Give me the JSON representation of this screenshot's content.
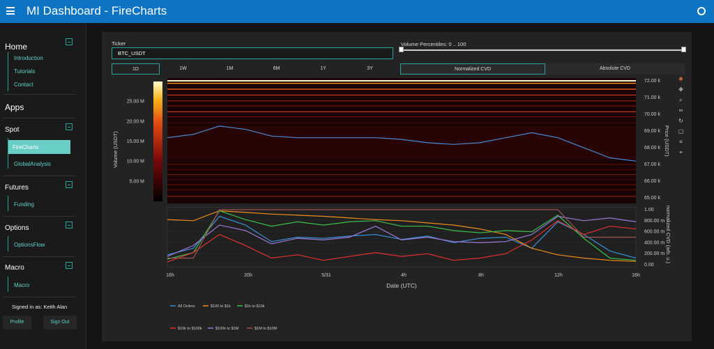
{
  "header": {
    "title": "MI Dashboard  -  FireCharts"
  },
  "sidebar": {
    "home": {
      "title": "Home",
      "items": [
        "Introduction",
        "Tutorials",
        "Contact"
      ]
    },
    "apps_title": "Apps",
    "spot": {
      "title": "Spot",
      "items": [
        "FireCharts",
        "GlobalAnalysis"
      ],
      "active": "FireCharts"
    },
    "futures": {
      "title": "Futures",
      "items": [
        "Funding"
      ]
    },
    "options": {
      "title": "Options",
      "items": [
        "OptionsFlow"
      ]
    },
    "macro": {
      "title": "Macro",
      "items": [
        "Macro"
      ]
    },
    "signed_in": "Signed in as: Keith Alan",
    "profile_label": "Profile",
    "signout_label": "Sign Out"
  },
  "controls": {
    "ticker_label": "Ticker",
    "ticker_value": "BTC_USDT",
    "volume_percentiles_label": "Volume Percentiles: 0 .. 100",
    "volume_percentiles_range": [
      0,
      100
    ],
    "timeframes": [
      "1D",
      "1W",
      "1M",
      "6M",
      "1Y",
      "3Y"
    ],
    "active_timeframe": "1D",
    "cvd_tabs": [
      "Normalized CVD",
      "Absolute CVD"
    ],
    "active_cvd_tab": "Normalized CVD"
  },
  "chart_data": [
    {
      "type": "heatmap",
      "ylabel_right": "Price (USDT)",
      "colorbar_title": "Volume (USDT)",
      "colorbar_ticks": [
        "25.00 M",
        "20.00 M",
        "15.00 M",
        "10.00 M",
        "5.00 M"
      ],
      "price_ticks": [
        "72.00 k",
        "71.00 k",
        "70.00 k",
        "69.00 k",
        "68.00 k",
        "67.00 k",
        "66.00 k",
        "65.00 k"
      ],
      "price_line": {
        "x": [
          "16h",
          "17h",
          "18h",
          "19h",
          "20h",
          "22h",
          "5/31",
          "2h",
          "4h",
          "6h",
          "8h",
          "10h",
          "11h",
          "12h",
          "12h30",
          "13h",
          "14h",
          "15h",
          "16h"
        ],
        "y": [
          68.6,
          68.8,
          69.3,
          69.1,
          68.7,
          68.6,
          68.6,
          68.6,
          68.6,
          68.5,
          68.3,
          68.2,
          68.3,
          68.6,
          68.9,
          68.6,
          68.0,
          67.4,
          67.2
        ]
      },
      "line_color": "#4a8ad4"
    },
    {
      "type": "line",
      "xlabel": "Date (UTC)",
      "ylabel_right": "normalized CVD (arb. u.)",
      "x_ticks": [
        "16h",
        "20h",
        "5/31",
        "4h",
        "8h",
        "12h",
        "16h"
      ],
      "y_ticks": [
        "1.00",
        "800.00 m",
        "600.00 m",
        "400.00 m",
        "200.00 m",
        "0.00"
      ],
      "ylim": [
        0,
        1
      ],
      "series": [
        {
          "name": "All Orders",
          "color": "#3a8fd4",
          "values": [
            0.18,
            0.3,
            0.88,
            0.72,
            0.42,
            0.5,
            0.48,
            0.52,
            0.55,
            0.46,
            0.52,
            0.4,
            0.48,
            0.5,
            0.3,
            0.78,
            0.55,
            0.25,
            0.12
          ]
        },
        {
          "name": "$100 to $1k",
          "color": "#f08c1a",
          "values": [
            0.82,
            0.8,
            0.98,
            0.95,
            0.92,
            0.9,
            0.88,
            0.85,
            0.82,
            0.8,
            0.76,
            0.72,
            0.65,
            0.55,
            0.3,
            0.18,
            0.12,
            0.08,
            0.06
          ]
        },
        {
          "name": "$1k to $10k",
          "color": "#3cc04a",
          "values": [
            0.1,
            0.22,
            0.98,
            0.82,
            0.7,
            0.78,
            0.72,
            0.78,
            0.8,
            0.7,
            0.7,
            0.62,
            0.58,
            0.62,
            0.6,
            0.9,
            0.48,
            0.12,
            0.08
          ]
        },
        {
          "name": "$10k to $100k",
          "color": "#e03030",
          "values": [
            0.05,
            0.22,
            0.55,
            0.35,
            0.12,
            0.18,
            0.08,
            0.15,
            0.22,
            0.15,
            0.2,
            0.08,
            0.12,
            0.2,
            0.45,
            0.8,
            0.55,
            0.7,
            0.65
          ]
        },
        {
          "name": "$100k to $1M",
          "color": "#9a7ad8",
          "values": [
            0.15,
            0.35,
            0.72,
            0.62,
            0.38,
            0.48,
            0.45,
            0.5,
            0.7,
            0.45,
            0.5,
            0.42,
            0.4,
            0.42,
            0.55,
            0.88,
            0.8,
            0.85,
            0.78
          ]
        },
        {
          "name": "$1M to $10M",
          "color": "#a05555",
          "values": [
            0.12,
            0.12,
            1.0,
            1.0,
            1.0,
            1.0,
            1.0,
            1.0,
            1.0,
            1.0,
            1.0,
            1.0,
            1.0,
            1.0,
            1.0,
            1.0,
            0.5,
            0.5,
            0.5
          ]
        }
      ]
    }
  ]
}
